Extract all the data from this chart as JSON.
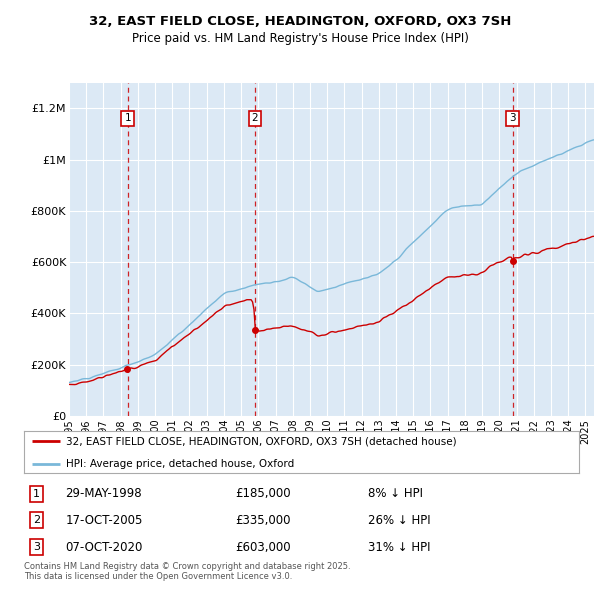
{
  "title_line1": "32, EAST FIELD CLOSE, HEADINGTON, OXFORD, OX3 7SH",
  "title_line2": "Price paid vs. HM Land Registry's House Price Index (HPI)",
  "background_color": "#dce9f5",
  "plot_bg_color": "#dce9f5",
  "hpi_line_color": "#7ab8d9",
  "price_line_color": "#cc0000",
  "vline_color": "#cc0000",
  "ylabel_ticks": [
    "£0",
    "£200K",
    "£400K",
    "£600K",
    "£800K",
    "£1M",
    "£1.2M"
  ],
  "ytick_values": [
    0,
    200000,
    400000,
    600000,
    800000,
    1000000,
    1200000
  ],
  "ylim": [
    0,
    1300000
  ],
  "xlim_start": 1995.0,
  "xlim_end": 2025.5,
  "transactions": [
    {
      "num": 1,
      "date_float": 1998.41,
      "price": 185000,
      "label": "29-MAY-1998",
      "amount": "£185,000",
      "hpi_note": "8% ↓ HPI"
    },
    {
      "num": 2,
      "date_float": 2005.79,
      "price": 335000,
      "label": "17-OCT-2005",
      "amount": "£335,000",
      "hpi_note": "26% ↓ HPI"
    },
    {
      "num": 3,
      "date_float": 2020.77,
      "price": 603000,
      "label": "07-OCT-2020",
      "amount": "£603,000",
      "hpi_note": "31% ↓ HPI"
    }
  ],
  "legend_entries": [
    "32, EAST FIELD CLOSE, HEADINGTON, OXFORD, OX3 7SH (detached house)",
    "HPI: Average price, detached house, Oxford"
  ],
  "footnote": "Contains HM Land Registry data © Crown copyright and database right 2025.\nThis data is licensed under the Open Government Licence v3.0.",
  "xticks": [
    1995,
    1996,
    1997,
    1998,
    1999,
    2000,
    2001,
    2002,
    2003,
    2004,
    2005,
    2006,
    2007,
    2008,
    2009,
    2010,
    2011,
    2012,
    2013,
    2014,
    2015,
    2016,
    2017,
    2018,
    2019,
    2020,
    2021,
    2022,
    2023,
    2024,
    2025
  ]
}
